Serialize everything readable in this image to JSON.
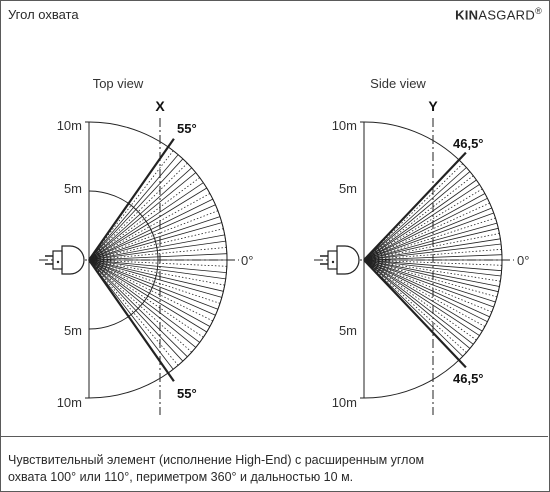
{
  "header": {
    "title": "Угол охвата",
    "brand_bold": "KIN",
    "brand_rest": "ASGARD",
    "brand_mark": "®"
  },
  "diagrams": {
    "top": {
      "view_label": "Top view",
      "axis_letter": "X",
      "range_top": "10m",
      "range_mid_top": "5m",
      "range_mid_bottom": "5m",
      "range_bottom": "10m",
      "angle_top": "55°",
      "angle_bottom": "55°",
      "zero_label": "0°"
    },
    "side": {
      "view_label": "Side view",
      "axis_letter": "Y",
      "range_top": "10m",
      "range_mid_top": "5m",
      "range_mid_bottom": "5m",
      "range_bottom": "10m",
      "angle_top": "46,5°",
      "angle_bottom": "46,5°",
      "zero_label": "0°"
    }
  },
  "caption": {
    "line1": "Чувствительный элемент (исполнение High-End) с расширенным углом",
    "line2": "охвата 100° или 110°, периметром 360° и дальностью 10 м."
  },
  "colors": {
    "line": "#222222",
    "frame": "#5a5a5a"
  }
}
